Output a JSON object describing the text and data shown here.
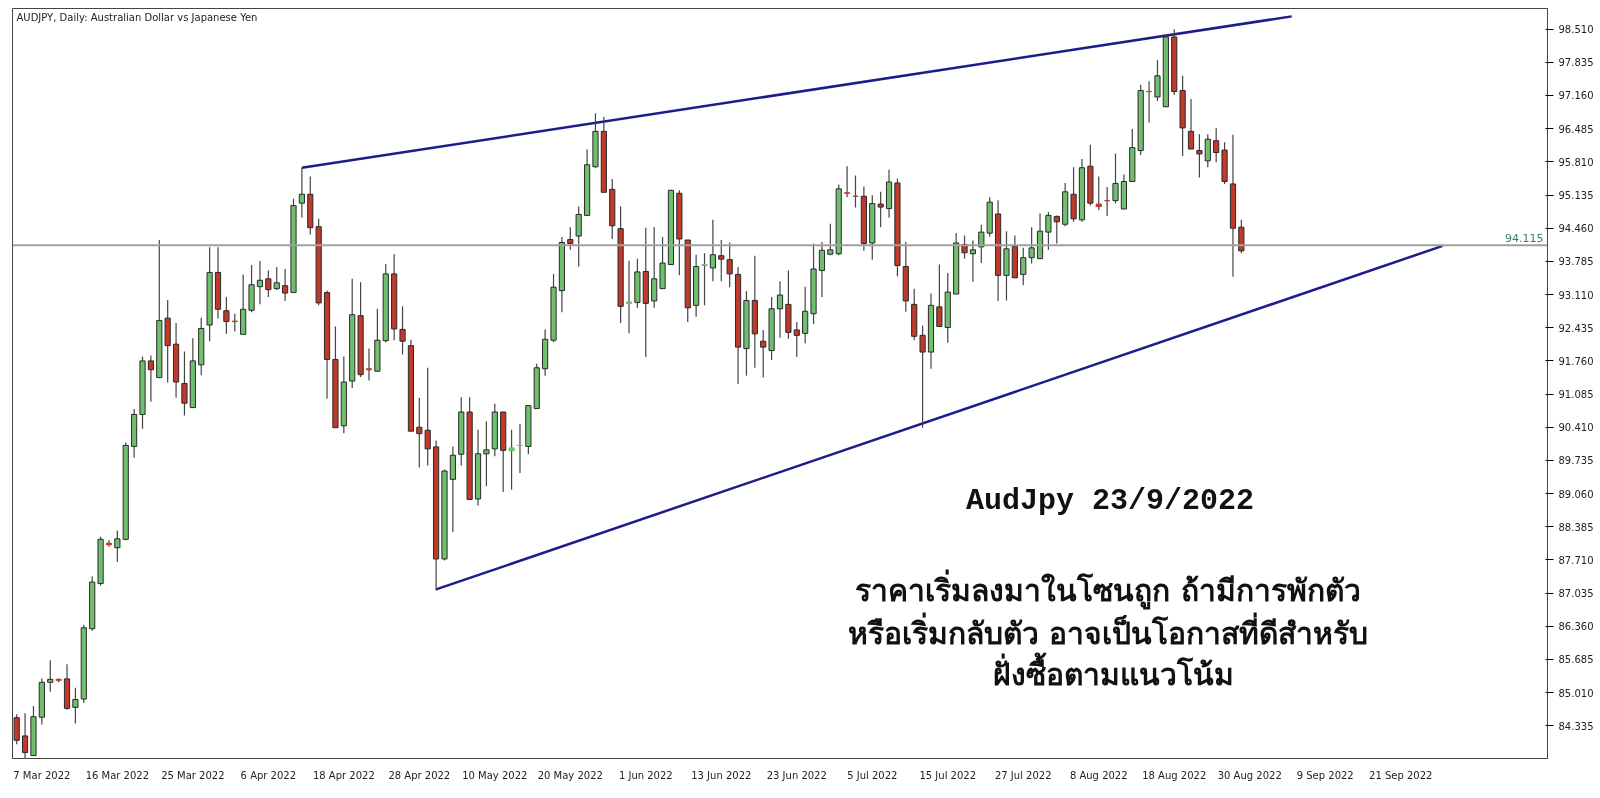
{
  "chart_data": {
    "type": "candlestick",
    "title": "AUDJPY, Daily:  Australian Dollar vs Japanese Yen",
    "annotations": [
      "AudJpy 23/9/2022",
      "ราคาเริ่มลงมาในโซนถูก  ถ้ามีการพักตัว",
      "หรือเริ่มกลับตัว  อาจเป็นโอกาสที่ดีสำหรับ",
      "ฝั่งซื้อตามแนวโน้ม"
    ],
    "categories": [
      null,
      null,
      null,
      "7 Mar 2022",
      null,
      null,
      null,
      null,
      null,
      null,
      null,
      null,
      "16 Mar 2022",
      null,
      null,
      null,
      null,
      null,
      null,
      null,
      null,
      "25 Mar 2022",
      null,
      null,
      null,
      null,
      null,
      null,
      null,
      null,
      "6 Apr 2022",
      null,
      null,
      null,
      null,
      null,
      null,
      null,
      null,
      "18 Apr 2022",
      null,
      null,
      null,
      null,
      null,
      null,
      null,
      null,
      "28 Apr 2022",
      null,
      null,
      null,
      null,
      null,
      null,
      null,
      null,
      "10 May 2022",
      null,
      null,
      null,
      null,
      null,
      null,
      null,
      null,
      "20 May 2022",
      null,
      null,
      null,
      null,
      null,
      null,
      null,
      null,
      "1 Jun 2022",
      null,
      null,
      null,
      null,
      null,
      null,
      null,
      null,
      "13 Jun 2022",
      null,
      null,
      null,
      null,
      null,
      null,
      null,
      null,
      "23 Jun 2022",
      null,
      null,
      null,
      null,
      null,
      null,
      null,
      null,
      "5 Jul 2022",
      null,
      null,
      null,
      null,
      null,
      null,
      null,
      null,
      "15 Jul 2022",
      null,
      null,
      null,
      null,
      null,
      null,
      null,
      null,
      "27 Jul 2022",
      null,
      null,
      null,
      null,
      null,
      null,
      null,
      null,
      "8 Aug 2022",
      null,
      null,
      null,
      null,
      null,
      null,
      null,
      null,
      "18 Aug 2022",
      null,
      null,
      null,
      null,
      null,
      null,
      null,
      null,
      "30 Aug 2022",
      null,
      null,
      null,
      null,
      null,
      null,
      null,
      null,
      "9 Sep 2022",
      null,
      null,
      null,
      null,
      null,
      null,
      null,
      null,
      "21 Sep 2022",
      null,
      null,
      null,
      null,
      null,
      null,
      null,
      null,
      null,
      null,
      null,
      null,
      null,
      null,
      null,
      null,
      null
    ],
    "ohlc": [
      [
        84.5,
        84.57,
        83.96,
        84.04
      ],
      [
        84.13,
        84.59,
        83.68,
        83.79
      ],
      [
        83.73,
        84.74,
        83.73,
        84.52
      ],
      [
        84.51,
        85.3,
        84.36,
        85.22
      ],
      [
        85.22,
        85.67,
        85.03,
        85.28
      ],
      [
        85.28,
        85.3,
        85.22,
        85.26
      ],
      [
        85.29,
        85.59,
        84.66,
        84.69
      ],
      [
        84.71,
        85.11,
        84.38,
        84.87
      ],
      [
        84.88,
        86.39,
        84.8,
        86.33
      ],
      [
        86.31,
        87.38,
        86.27,
        87.26
      ],
      [
        87.23,
        88.18,
        87.19,
        88.13
      ],
      [
        88.05,
        88.11,
        87.98,
        88.02
      ],
      [
        87.96,
        88.31,
        87.67,
        88.14
      ],
      [
        88.13,
        90.1,
        88.11,
        90.04
      ],
      [
        90.02,
        90.78,
        89.79,
        90.67
      ],
      [
        90.67,
        91.85,
        90.38,
        91.76
      ],
      [
        91.76,
        91.87,
        90.93,
        91.58
      ],
      [
        91.42,
        94.22,
        91.42,
        92.58
      ],
      [
        92.63,
        93.0,
        91.32,
        92.07
      ],
      [
        92.1,
        92.53,
        91.01,
        91.33
      ],
      [
        91.3,
        91.95,
        90.65,
        90.9
      ],
      [
        90.81,
        92.22,
        90.81,
        91.76
      ],
      [
        91.68,
        92.64,
        91.47,
        92.42
      ],
      [
        92.49,
        94.07,
        92.16,
        93.56
      ],
      [
        93.56,
        94.07,
        92.62,
        92.81
      ],
      [
        92.78,
        93.06,
        92.31,
        92.56
      ],
      [
        92.57,
        92.72,
        92.36,
        92.56
      ],
      [
        92.3,
        93.52,
        92.3,
        92.81
      ],
      [
        92.79,
        93.71,
        92.75,
        93.31
      ],
      [
        93.27,
        93.79,
        92.91,
        93.4
      ],
      [
        93.43,
        93.6,
        93.06,
        93.21
      ],
      [
        93.23,
        93.67,
        93.2,
        93.35
      ],
      [
        93.29,
        93.63,
        92.98,
        93.14
      ],
      [
        93.15,
        95.06,
        93.15,
        94.92
      ],
      [
        94.97,
        95.69,
        94.68,
        95.15
      ],
      [
        95.15,
        95.51,
        94.33,
        94.47
      ],
      [
        94.49,
        94.65,
        92.89,
        92.94
      ],
      [
        93.15,
        93.19,
        90.99,
        91.79
      ],
      [
        91.79,
        92.46,
        90.4,
        90.4
      ],
      [
        90.44,
        91.85,
        90.29,
        91.33
      ],
      [
        91.35,
        93.43,
        91.21,
        92.7
      ],
      [
        92.68,
        93.36,
        91.43,
        91.48
      ],
      [
        91.6,
        92.01,
        91.36,
        91.58
      ],
      [
        91.55,
        92.82,
        91.55,
        92.18
      ],
      [
        92.17,
        93.73,
        92.14,
        93.53
      ],
      [
        93.53,
        93.93,
        92.18,
        92.41
      ],
      [
        92.4,
        92.87,
        91.89,
        92.16
      ],
      [
        92.07,
        92.19,
        90.33,
        90.33
      ],
      [
        90.41,
        91.01,
        89.59,
        90.28
      ],
      [
        90.35,
        91.62,
        89.63,
        89.97
      ],
      [
        90.01,
        90.14,
        87.09,
        87.73
      ],
      [
        87.73,
        89.55,
        87.7,
        89.52
      ],
      [
        89.35,
        90.02,
        88.28,
        89.84
      ],
      [
        89.86,
        91.02,
        89.63,
        90.72
      ],
      [
        90.72,
        91.02,
        88.94,
        88.94
      ],
      [
        88.95,
        90.36,
        88.82,
        89.87
      ],
      [
        89.87,
        90.53,
        89.21,
        89.95
      ],
      [
        89.97,
        90.89,
        89.82,
        90.72
      ],
      [
        90.72,
        90.72,
        89.09,
        89.94
      ],
      [
        89.93,
        90.36,
        89.14,
        89.99
      ],
      [
        90.04,
        90.48,
        89.48,
        90.04
      ],
      [
        90.02,
        90.85,
        89.86,
        90.85
      ],
      [
        90.79,
        91.7,
        90.79,
        91.62
      ],
      [
        91.6,
        92.4,
        91.46,
        92.2
      ],
      [
        92.18,
        93.53,
        92.14,
        93.26
      ],
      [
        93.19,
        94.28,
        92.75,
        94.17
      ],
      [
        94.23,
        94.48,
        94.02,
        94.15
      ],
      [
        94.3,
        94.9,
        93.68,
        94.74
      ],
      [
        94.72,
        96.06,
        94.72,
        95.75
      ],
      [
        95.71,
        96.8,
        95.69,
        96.43
      ],
      [
        96.43,
        96.73,
        95.19,
        95.19
      ],
      [
        95.25,
        95.46,
        94.24,
        94.51
      ],
      [
        94.45,
        94.9,
        92.53,
        92.87
      ],
      [
        92.93,
        93.8,
        92.32,
        92.96
      ],
      [
        92.95,
        93.84,
        92.84,
        93.57
      ],
      [
        93.58,
        94.47,
        91.84,
        92.93
      ],
      [
        92.98,
        94.48,
        92.84,
        93.43
      ],
      [
        93.23,
        94.28,
        93.23,
        93.75
      ],
      [
        93.72,
        95.24,
        93.72,
        95.23
      ],
      [
        95.17,
        95.23,
        93.5,
        94.24
      ],
      [
        94.22,
        94.22,
        92.55,
        92.84
      ],
      [
        92.89,
        93.92,
        92.66,
        93.68
      ],
      [
        93.7,
        93.95,
        92.89,
        93.72
      ],
      [
        93.65,
        94.63,
        93.38,
        93.92
      ],
      [
        93.9,
        94.22,
        93.38,
        93.83
      ],
      [
        93.82,
        94.17,
        93.26,
        93.53
      ],
      [
        93.52,
        93.67,
        91.29,
        92.04
      ],
      [
        92.01,
        93.18,
        91.46,
        92.99
      ],
      [
        92.99,
        93.9,
        91.62,
        92.31
      ],
      [
        92.16,
        92.39,
        91.42,
        92.04
      ],
      [
        91.97,
        93.06,
        91.78,
        92.82
      ],
      [
        92.82,
        93.38,
        92.23,
        93.1
      ],
      [
        92.91,
        93.6,
        92.21,
        92.34
      ],
      [
        92.39,
        92.55,
        91.84,
        92.28
      ],
      [
        92.32,
        93.27,
        92.12,
        92.77
      ],
      [
        92.72,
        94.15,
        92.51,
        93.63
      ],
      [
        93.6,
        94.18,
        93.06,
        94.01
      ],
      [
        93.93,
        94.55,
        93.91,
        94.02
      ],
      [
        93.94,
        95.35,
        93.91,
        95.26
      ],
      [
        95.18,
        95.72,
        95.09,
        95.17
      ],
      [
        95.11,
        95.53,
        94.88,
        95.11
      ],
      [
        95.11,
        95.31,
        94.0,
        94.15
      ],
      [
        94.16,
        95.13,
        93.82,
        94.96
      ],
      [
        94.95,
        95.2,
        94.48,
        94.89
      ],
      [
        94.86,
        95.65,
        94.67,
        95.4
      ],
      [
        95.38,
        95.47,
        93.48,
        93.7
      ],
      [
        93.68,
        94.18,
        92.76,
        92.98
      ],
      [
        92.91,
        93.23,
        92.18,
        92.26
      ],
      [
        92.28,
        92.48,
        90.4,
        91.94
      ],
      [
        91.94,
        93.13,
        91.6,
        92.89
      ],
      [
        92.86,
        93.72,
        92.46,
        92.46
      ],
      [
        92.44,
        93.55,
        92.13,
        93.16
      ],
      [
        93.12,
        94.36,
        93.12,
        94.16
      ],
      [
        94.13,
        94.31,
        93.84,
        93.96
      ],
      [
        93.94,
        94.21,
        93.37,
        94.02
      ],
      [
        94.08,
        94.53,
        93.75,
        94.38
      ],
      [
        94.36,
        95.09,
        94.29,
        94.99
      ],
      [
        94.75,
        95.03,
        92.98,
        93.5
      ],
      [
        93.5,
        94.4,
        92.99,
        94.04
      ],
      [
        94.09,
        94.31,
        93.45,
        93.45
      ],
      [
        93.52,
        94.06,
        93.3,
        93.86
      ],
      [
        93.86,
        94.48,
        93.74,
        94.06
      ],
      [
        93.84,
        94.76,
        93.84,
        94.4
      ],
      [
        94.38,
        94.79,
        94.02,
        94.72
      ],
      [
        94.7,
        94.72,
        94.15,
        94.59
      ],
      [
        94.54,
        95.38,
        94.5,
        95.2
      ],
      [
        95.15,
        95.7,
        94.59,
        94.65
      ],
      [
        94.63,
        95.87,
        94.59,
        95.69
      ],
      [
        95.72,
        96.16,
        94.92,
        94.97
      ],
      [
        94.95,
        95.51,
        94.83,
        94.9
      ],
      [
        95.02,
        95.3,
        94.71,
        95.02
      ],
      [
        95.02,
        95.98,
        94.96,
        95.37
      ],
      [
        94.85,
        95.55,
        94.85,
        95.41
      ],
      [
        95.41,
        96.48,
        95.41,
        96.1
      ],
      [
        96.04,
        97.38,
        95.95,
        97.26
      ],
      [
        97.24,
        97.45,
        96.61,
        97.24
      ],
      [
        97.13,
        97.88,
        97.05,
        97.56
      ],
      [
        96.93,
        98.4,
        96.93,
        98.35
      ],
      [
        98.35,
        98.51,
        97.17,
        97.24
      ],
      [
        97.26,
        97.56,
        95.93,
        96.5
      ],
      [
        96.43,
        97.09,
        96.07,
        96.07
      ],
      [
        96.04,
        96.37,
        95.49,
        95.97
      ],
      [
        95.83,
        96.37,
        95.7,
        96.27
      ],
      [
        96.24,
        96.5,
        95.8,
        96.0
      ],
      [
        96.05,
        96.21,
        95.36,
        95.41
      ],
      [
        95.36,
        96.36,
        93.47,
        94.46
      ],
      [
        94.48,
        94.63,
        93.95,
        94.0
      ],
      null,
      null,
      null,
      null,
      null,
      null,
      null,
      null,
      null,
      null,
      null,
      null,
      null,
      null,
      null,
      null,
      null,
      null,
      null,
      null,
      null,
      null,
      null,
      null,
      null,
      null,
      null,
      null,
      null,
      null,
      null,
      null,
      null,
      null,
      null,
      null
    ],
    "colors": [
      "#c0392b",
      "#c0392b",
      "#6fbf6f",
      "#6fbf6f",
      "#6fbf6f",
      "#c0392b",
      "#c0392b",
      "#6fbf6f",
      "#6fbf6f",
      "#6fbf6f",
      "#6fbf6f",
      "#c0392b",
      "#6fbf6f",
      "#6fbf6f",
      "#6fbf6f",
      "#6fbf6f",
      "#c0392b",
      "#6fbf6f",
      "#c0392b",
      "#c0392b",
      "#c0392b",
      "#6fbf6f",
      "#6fbf6f",
      "#6fbf6f",
      "#c0392b",
      "#c0392b",
      "#c0392b",
      "#6fbf6f",
      "#6fbf6f",
      "#6fbf6f",
      "#c0392b",
      "#6fbf6f",
      "#c0392b",
      "#6fbf6f",
      "#6fbf6f",
      "#c0392b",
      "#c0392b",
      "#c0392b",
      "#c0392b",
      "#6fbf6f",
      "#6fbf6f",
      "#c0392b",
      "#c0392b",
      "#6fbf6f",
      "#6fbf6f",
      "#c0392b",
      "#c0392b",
      "#c0392b",
      "#c0392b",
      "#c0392b",
      "#c0392b",
      "#6fbf6f",
      "#6fbf6f",
      "#6fbf6f",
      "#c0392b",
      "#6fbf6f",
      "#6fbf6f",
      "#6fbf6f",
      "#c0392b",
      "#6fbf6f",
      "#6fbf6f",
      "#6fbf6f",
      "#6fbf6f",
      "#6fbf6f",
      "#6fbf6f",
      "#6fbf6f",
      "#c0392b",
      "#6fbf6f",
      "#6fbf6f",
      "#6fbf6f",
      "#c0392b",
      "#c0392b",
      "#c0392b",
      "#6fbf6f",
      "#6fbf6f",
      "#c0392b",
      "#6fbf6f",
      "#6fbf6f",
      "#6fbf6f",
      "#c0392b",
      "#c0392b",
      "#6fbf6f",
      "#6fbf6f",
      "#6fbf6f",
      "#c0392b",
      "#c0392b",
      "#c0392b",
      "#6fbf6f",
      "#c0392b",
      "#c0392b",
      "#6fbf6f",
      "#6fbf6f",
      "#c0392b",
      "#c0392b",
      "#6fbf6f",
      "#6fbf6f",
      "#6fbf6f",
      "#6fbf6f",
      "#6fbf6f",
      "#c0392b",
      "#c0392b",
      "#c0392b",
      "#6fbf6f",
      "#c0392b",
      "#6fbf6f",
      "#c0392b",
      "#c0392b",
      "#c0392b",
      "#c0392b",
      "#6fbf6f",
      "#c0392b",
      "#6fbf6f",
      "#6fbf6f",
      "#c0392b",
      "#6fbf6f",
      "#6fbf6f",
      "#6fbf6f",
      "#c0392b",
      "#6fbf6f",
      "#c0392b",
      "#6fbf6f",
      "#6fbf6f",
      "#6fbf6f",
      "#6fbf6f",
      "#c0392b",
      "#6fbf6f",
      "#c0392b",
      "#6fbf6f",
      "#c0392b",
      "#c0392b",
      "#c0392b",
      "#6fbf6f",
      "#6fbf6f",
      "#6fbf6f",
      "#6fbf6f",
      "#c0392b",
      "#6fbf6f",
      "#6fbf6f",
      "#c0392b",
      "#c0392b",
      "#c0392b",
      "#c0392b",
      "#6fbf6f",
      "#c0392b",
      "#c0392b",
      "#c0392b",
      "#c0392b",
      null,
      null,
      null,
      null,
      null,
      null,
      null,
      null,
      null,
      null,
      null,
      null,
      null,
      null,
      null,
      null,
      null,
      null,
      null,
      null,
      null,
      null,
      null,
      null,
      null,
      null,
      null,
      null,
      null,
      null,
      null,
      null,
      null,
      null,
      null,
      null
    ],
    "series": [
      {
        "type": "line",
        "color": "#1c1c8c",
        "values": [
          null,
          null,
          null,
          null,
          null,
          null,
          null,
          null,
          null,
          null,
          null,
          null,
          null,
          null,
          null,
          null,
          null,
          null,
          null,
          null,
          null,
          null,
          null,
          null,
          null,
          null,
          null,
          null,
          null,
          null,
          null,
          null,
          null,
          null,
          95.69,
          null,
          null,
          null,
          null,
          null,
          null,
          null,
          null,
          null,
          null,
          null,
          null,
          null,
          null,
          null,
          null,
          null,
          null,
          null,
          null,
          null,
          null,
          null,
          null,
          null,
          null,
          null,
          null,
          null,
          null,
          null,
          null,
          null,
          null,
          null,
          null,
          null,
          null,
          null,
          null,
          null,
          null,
          null,
          null,
          null,
          null,
          null,
          null,
          null,
          null,
          null,
          null,
          null,
          null,
          null,
          null,
          null,
          null,
          null,
          null,
          null,
          null,
          null,
          null,
          null,
          null,
          null,
          null,
          null,
          null,
          null,
          null,
          null,
          null,
          null,
          null,
          null,
          null,
          null,
          null,
          null,
          null,
          null,
          null,
          null,
          null,
          null,
          null,
          null,
          null,
          null,
          null,
          null,
          null,
          null,
          null,
          null,
          null,
          null,
          null,
          null,
          null,
          null,
          null,
          null,
          null,
          null,
          null,
          null,
          null,
          null,
          null,
          null,
          null,
          null,
          null,
          null,
          98.77,
          null,
          null,
          null,
          null,
          null,
          null,
          null,
          null,
          null,
          null,
          null,
          null,
          null,
          null,
          null,
          null,
          null,
          null,
          null,
          null,
          null,
          null,
          null,
          null,
          null,
          null,
          null,
          null,
          null,
          null
        ]
      },
      {
        "type": "line",
        "color": "#1c1c8c",
        "values": [
          null,
          null,
          null,
          null,
          null,
          null,
          null,
          null,
          null,
          null,
          null,
          null,
          null,
          null,
          null,
          null,
          null,
          null,
          null,
          null,
          null,
          null,
          null,
          null,
          null,
          null,
          null,
          null,
          null,
          null,
          null,
          null,
          null,
          null,
          null,
          null,
          null,
          null,
          null,
          null,
          null,
          null,
          null,
          null,
          null,
          null,
          null,
          null,
          null,
          null,
          87.11,
          null,
          null,
          null,
          null,
          null,
          null,
          null,
          null,
          null,
          null,
          null,
          null,
          null,
          null,
          null,
          null,
          null,
          null,
          null,
          null,
          null,
          null,
          null,
          null,
          null,
          null,
          null,
          null,
          null,
          null,
          null,
          null,
          null,
          null,
          null,
          null,
          null,
          null,
          null,
          null,
          null,
          null,
          null,
          null,
          null,
          null,
          null,
          null,
          null,
          null,
          null,
          null,
          null,
          null,
          null,
          null,
          null,
          null,
          null,
          null,
          null,
          null,
          null,
          null,
          null,
          null,
          null,
          null,
          null,
          null,
          null,
          null,
          null,
          null,
          null,
          null,
          null,
          null,
          null,
          null,
          null,
          null,
          null,
          null,
          null,
          null,
          null,
          null,
          null,
          null,
          null,
          null,
          null,
          null,
          null,
          null,
          null,
          null,
          null,
          null,
          null,
          null,
          null,
          null,
          null,
          null,
          null,
          null,
          null,
          null,
          null,
          null,
          null,
          null,
          null,
          null,
          null,
          null,
          null,
          94.1,
          null,
          null,
          null,
          null,
          null,
          null,
          null,
          null,
          null,
          null,
          null,
          null
        ]
      }
    ],
    "ref_lines": [
      {
        "axis": "y",
        "value": 94.115,
        "label": "94.115",
        "color": "#a0a0a0"
      }
    ],
    "ylim": [
      83.67,
      98.93
    ],
    "yticks": [
      {
        "value": 98.51,
        "label": "98.510"
      },
      {
        "value": 97.835,
        "label": "97.835"
      },
      {
        "value": 97.16,
        "label": "97.160"
      },
      {
        "value": 96.485,
        "label": "96.485"
      },
      {
        "value": 95.81,
        "label": "95.810"
      },
      {
        "value": 95.135,
        "label": "95.135"
      },
      {
        "value": 94.46,
        "label": "94.460"
      },
      {
        "value": 93.785,
        "label": "93.785"
      },
      {
        "value": 93.11,
        "label": "93.110"
      },
      {
        "value": 92.435,
        "label": "92.435"
      },
      {
        "value": 91.76,
        "label": "91.760"
      },
      {
        "value": 91.085,
        "label": "91.085"
      },
      {
        "value": 90.41,
        "label": "90.410"
      },
      {
        "value": 89.735,
        "label": "89.735"
      },
      {
        "value": 89.06,
        "label": "89.060"
      },
      {
        "value": 88.385,
        "label": "88.385"
      },
      {
        "value": 87.71,
        "label": "87.710"
      },
      {
        "value": 87.035,
        "label": "87.035"
      },
      {
        "value": 86.36,
        "label": "86.360"
      },
      {
        "value": 85.685,
        "label": "85.685"
      },
      {
        "value": 85.01,
        "label": "85.010"
      },
      {
        "value": 84.335,
        "label": "84.335"
      }
    ],
    "grid": false
  }
}
